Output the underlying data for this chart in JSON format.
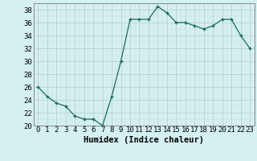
{
  "xvals": [
    0,
    1,
    2,
    3,
    4,
    5,
    6,
    7,
    8,
    9,
    10,
    11,
    12,
    13,
    14,
    15,
    16,
    17,
    18,
    19,
    20,
    21,
    22,
    23
  ],
  "yvals": [
    26,
    24.5,
    23.5,
    23,
    21.5,
    21,
    21,
    20,
    24.5,
    30,
    36.5,
    36.5,
    36.5,
    38.5,
    37.5,
    36,
    36,
    35.5,
    35,
    35.5,
    36.5,
    36.5,
    34,
    32
  ],
  "line_color": "#1a6b5a",
  "marker": "+",
  "bg_color": "#d4f0f0",
  "grid_major_color": "#b8c8c8",
  "grid_minor_color": "#c8dede",
  "xlabel": "Humidex (Indice chaleur)",
  "ylim": [
    20,
    39
  ],
  "xlim": [
    -0.5,
    23.5
  ],
  "yticks": [
    20,
    22,
    24,
    26,
    28,
    30,
    32,
    34,
    36,
    38
  ],
  "xticks": [
    0,
    1,
    2,
    3,
    4,
    5,
    6,
    7,
    8,
    9,
    10,
    11,
    12,
    13,
    14,
    15,
    16,
    17,
    18,
    19,
    20,
    21,
    22,
    23
  ],
  "xlabel_fontsize": 7.5,
  "tick_fontsize": 6.5
}
